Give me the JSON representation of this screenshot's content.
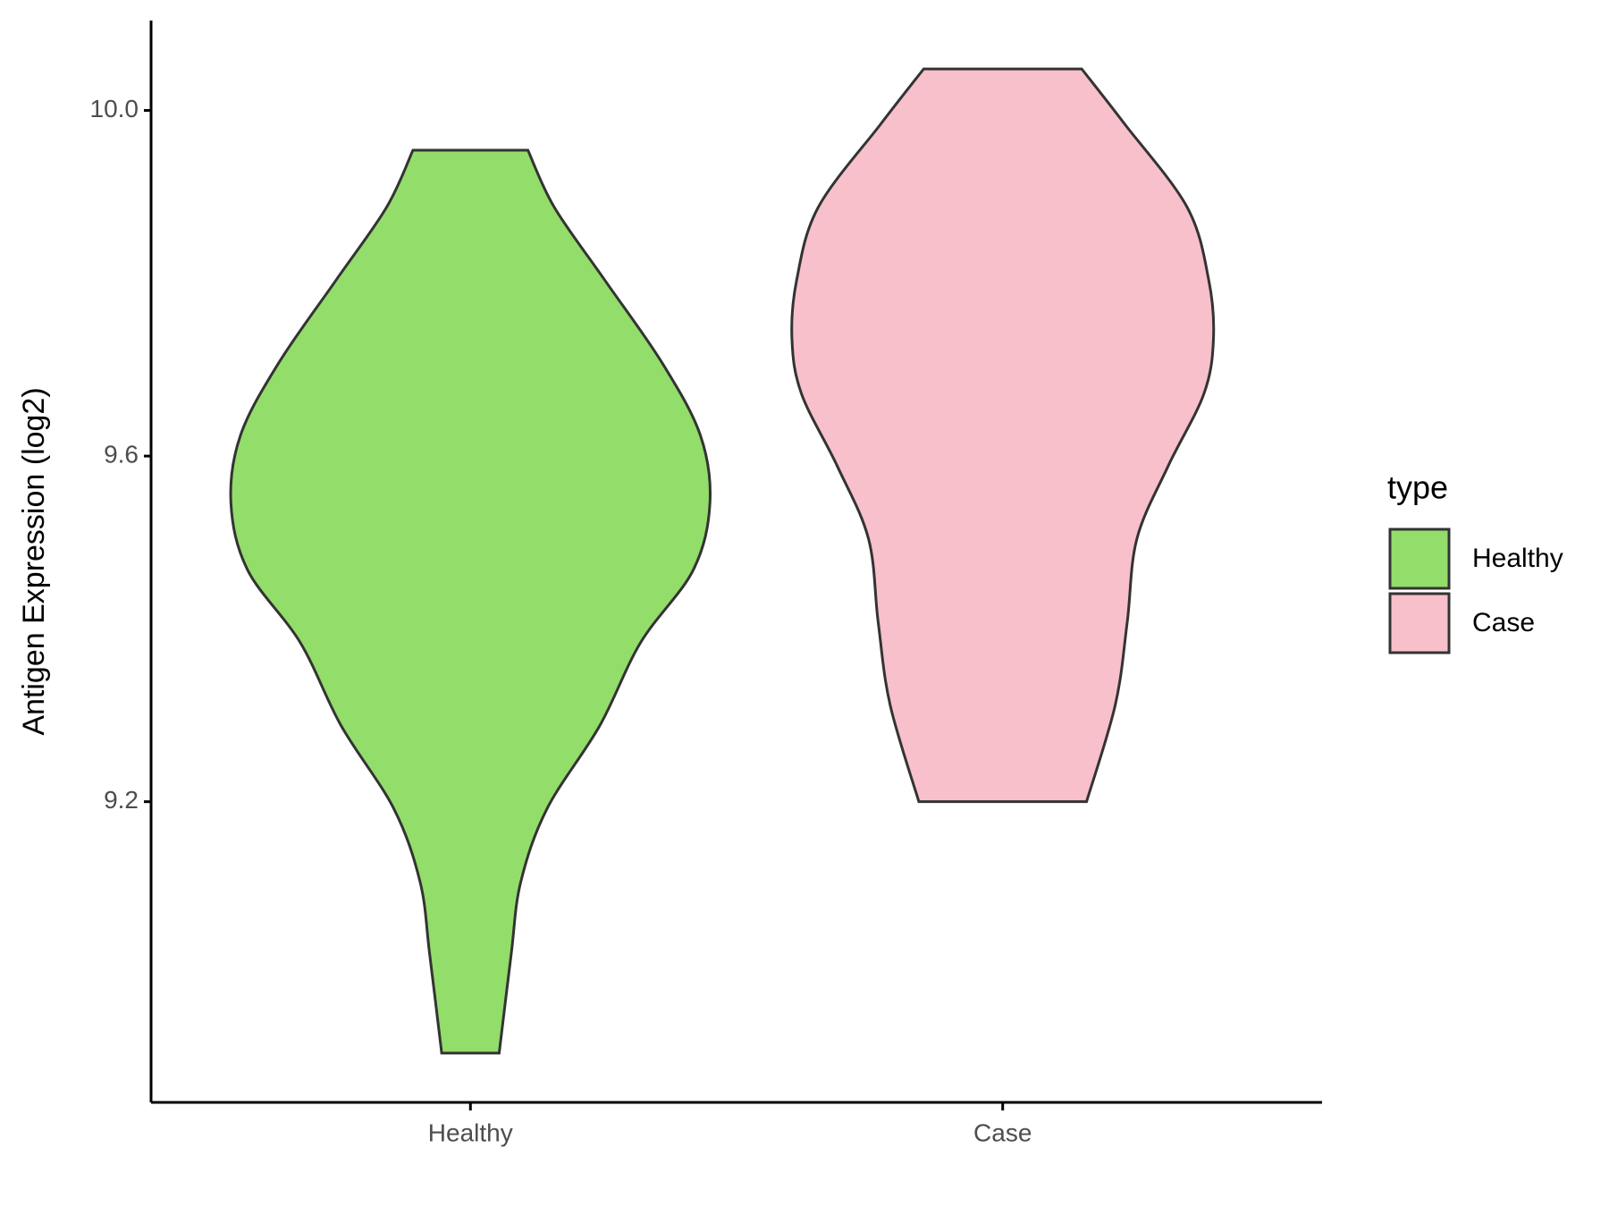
{
  "chart_data": {
    "type": "violin",
    "y_label": "Antigen Expression (log2)",
    "categories": [
      "Healthy",
      "Case"
    ],
    "legend_title": "type",
    "legend_position": "right",
    "ylim": [
      8.852,
      10.104
    ],
    "yticks": [
      {
        "value": 9.2,
        "label": "9.2"
      },
      {
        "value": 9.6,
        "label": "9.6"
      },
      {
        "value": 10.0,
        "label": "10.0"
      }
    ],
    "grid": false,
    "series": [
      {
        "name": "Healthy",
        "color": "#93dd6a",
        "y": [
          9.954,
          9.888,
          9.804,
          9.708,
          9.624,
          9.546,
          9.468,
          9.384,
          9.288,
          9.192,
          9.107,
          9.023,
          8.909
        ],
        "density": [
          0.24,
          0.35,
          0.56,
          0.8,
          0.96,
          1.0,
          0.93,
          0.71,
          0.54,
          0.32,
          0.21,
          0.17,
          0.12
        ]
      },
      {
        "name": "Case",
        "color": "#f7c0cb",
        "y": [
          10.048,
          9.984,
          9.888,
          9.804,
          9.736,
          9.672,
          9.588,
          9.504,
          9.408,
          9.312,
          9.2
        ],
        "density": [
          0.33,
          0.51,
          0.77,
          0.86,
          0.88,
          0.84,
          0.69,
          0.56,
          0.52,
          0.47,
          0.35
        ]
      }
    ]
  }
}
